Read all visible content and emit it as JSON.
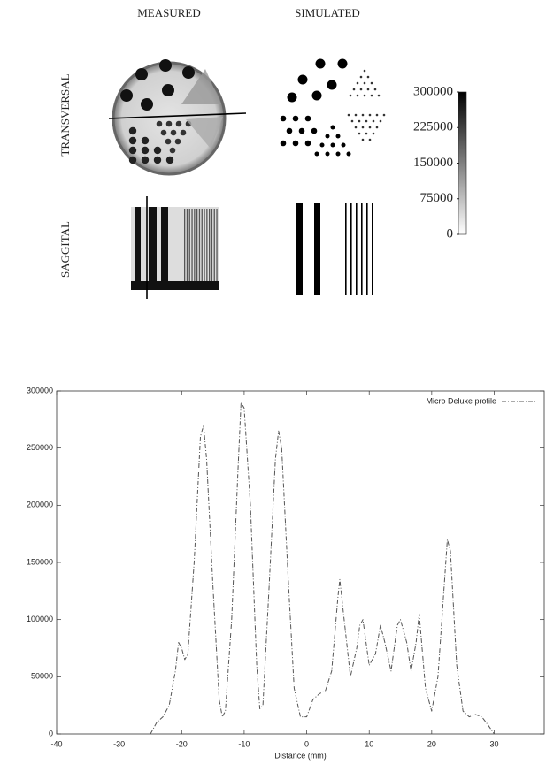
{
  "panel": {
    "columns": [
      "MEASURED",
      "SIMULATED"
    ],
    "rows": [
      "TRANSVERSAL",
      "SAGGITAL"
    ],
    "colorbar": {
      "lim": [
        0,
        300000
      ],
      "ticks": [
        0,
        75000,
        150000,
        225000,
        300000
      ]
    }
  },
  "chart_data": {
    "type": "line",
    "x_label": "Distance (mm)",
    "x": [
      -25,
      -24,
      -23,
      -22,
      -21,
      -20.5,
      -20,
      -19.5,
      -19,
      -18,
      -17,
      -16.5,
      -16,
      -15,
      -14,
      -13.5,
      -13,
      -12,
      -11,
      -10.5,
      -10,
      -9,
      -8,
      -7.5,
      -7,
      -6,
      -5,
      -4.5,
      -4,
      -3,
      -2,
      -1,
      0,
      1,
      2,
      3,
      4,
      5,
      5.3,
      6,
      7,
      8,
      8.5,
      9,
      10,
      11,
      11.8,
      12.5,
      13.5,
      14.5,
      15,
      16,
      16.7,
      17.5,
      18,
      19,
      20,
      21,
      22,
      22.5,
      23,
      24,
      25,
      26,
      27,
      28,
      29,
      30
    ],
    "series": [
      {
        "name": "Micro Deluxe profile",
        "color": "#555555",
        "values": [
          0,
          10000,
          15000,
          25000,
          55000,
          80000,
          75000,
          65000,
          70000,
          150000,
          260000,
          270000,
          240000,
          130000,
          30000,
          15000,
          20000,
          100000,
          230000,
          290000,
          285000,
          200000,
          60000,
          22000,
          25000,
          130000,
          240000,
          265000,
          250000,
          140000,
          40000,
          15000,
          15000,
          30000,
          35000,
          38000,
          55000,
          120000,
          135000,
          100000,
          50000,
          75000,
          95000,
          100000,
          60000,
          70000,
          95000,
          80000,
          55000,
          95000,
          100000,
          80000,
          55000,
          80000,
          105000,
          40000,
          20000,
          50000,
          130000,
          170000,
          160000,
          60000,
          20000,
          15000,
          17000,
          15000,
          8000,
          0
        ]
      }
    ],
    "xlim": [
      -40,
      38
    ],
    "xticks": [
      -40,
      -30,
      -20,
      -10,
      0,
      10,
      20,
      30
    ],
    "ylim": [
      0,
      300000
    ],
    "yticks": [
      0,
      50000,
      100000,
      150000,
      200000,
      250000,
      300000
    ],
    "grid": false,
    "legend": "top-right"
  }
}
